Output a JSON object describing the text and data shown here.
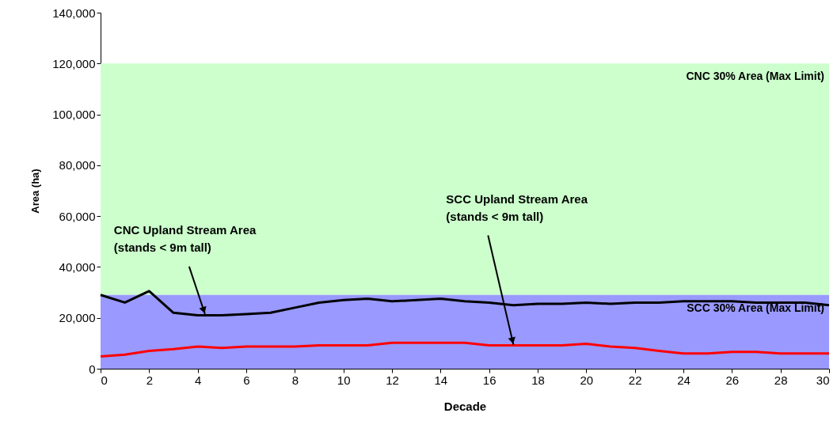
{
  "chart_data": {
    "type": "line",
    "xlabel": "Decade",
    "ylabel": "Area (ha)",
    "x": [
      0,
      1,
      2,
      3,
      4,
      5,
      6,
      7,
      8,
      9,
      10,
      11,
      12,
      13,
      14,
      15,
      16,
      17,
      18,
      19,
      20,
      21,
      22,
      23,
      24,
      25,
      26,
      27,
      28,
      29,
      30
    ],
    "series": [
      {
        "color": "#000000",
        "values": [
          29000,
          26000,
          30500,
          22000,
          21000,
          21000,
          21500,
          22000,
          24000,
          26000,
          27000,
          27500,
          26500,
          27000,
          27500,
          26500,
          26000,
          25000,
          25500,
          25500,
          26000,
          25500,
          26000,
          26000,
          26500,
          26500,
          26500,
          26000,
          26000,
          26000,
          25000
        ]
      },
      {
        "color": "#ff0000",
        "values": [
          4800,
          5500,
          7000,
          7700,
          8700,
          8200,
          8700,
          8700,
          8700,
          9200,
          9200,
          9200,
          10200,
          10200,
          10200,
          10200,
          9200,
          9200,
          9200,
          9200,
          9800,
          8700,
          8200,
          7000,
          6000,
          6000,
          6600,
          6600,
          6000,
          6000,
          6000
        ]
      }
    ],
    "bands": [
      {
        "axis": "y",
        "from": 29000,
        "to": 120000,
        "label": "CNC 30% Area (Max Limit)",
        "color": "#ccffcc"
      },
      {
        "axis": "y",
        "from": 0,
        "to": 29000,
        "label": "SCC 30% Area (Max Limit)",
        "color": "#9999ff"
      }
    ],
    "annotations": [
      {
        "text": "CNC Upland Stream Area\n(stands < 9m tall)",
        "x": 4.3,
        "y": 21500
      },
      {
        "text": "SCC Upland Stream Area\n(stands < 9m tall)",
        "x": 17,
        "y": 9500
      }
    ],
    "xlim": [
      0,
      30
    ],
    "xticks": [
      0,
      2,
      4,
      6,
      8,
      10,
      12,
      14,
      16,
      18,
      20,
      22,
      24,
      26,
      28,
      30
    ],
    "ylim": [
      0,
      140000
    ],
    "yticks": [
      0,
      {
        "value": 20000,
        "label": "20,000"
      },
      {
        "value": 40000,
        "label": "40,000"
      },
      {
        "value": 60000,
        "label": "60,000"
      },
      {
        "value": 80000,
        "label": "80,000"
      },
      {
        "value": 100000,
        "label": "100,000"
      },
      {
        "value": 120000,
        "label": "120,000"
      },
      {
        "value": 140000,
        "label": "140,000"
      }
    ],
    "grid": false,
    "marker": "none",
    "line_style": "solid"
  }
}
